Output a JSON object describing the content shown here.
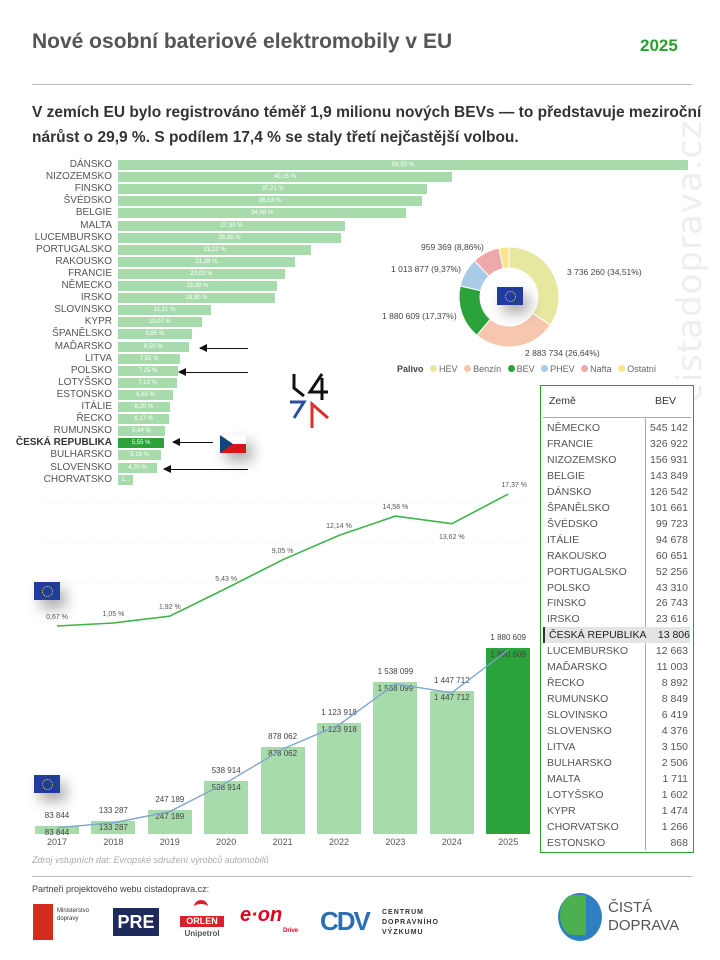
{
  "header": {
    "title": "Nové osobní bateriové elektromobily v EU",
    "year": "2025"
  },
  "subtitle": "V zemích EU bylo registrováno téměř 1,9 milionu nových BEVs — to představuje meziroční nárůst o 29,9 %. S podílem 17,4 % se staly třetí nejčastější volbou.",
  "colors": {
    "accent": "#2ca02c",
    "bar_light": "#a8dbab",
    "bar_highlight": "#2ca33a",
    "line_green": "#3cb44b",
    "line_blue": "#7fa6cc"
  },
  "chart_data": [
    {
      "type": "bar",
      "orientation": "horizontal",
      "highlight": "ČESKÁ REPUBLIKA",
      "categories": [
        "DÁNSKO",
        "NIZOZEMSKO",
        "FINSKO",
        "ŠVÉDSKO",
        "BELGIE",
        "MALTA",
        "LUCEMBURSKO",
        "PORTUGALSKO",
        "RAKOUSKO",
        "FRANCIE",
        "NĚMECKO",
        "IRSKO",
        "SLOVINSKO",
        "KYPR",
        "ŠPANĚLSKO",
        "MAĎARSKO",
        "LITVA",
        "POLSKO",
        "LOTYŠSKO",
        "ESTONSKO",
        "ITÁLIE",
        "ŘECKO",
        "RUMUNSKO",
        "ČESKÁ REPUBLIKA",
        "BULHARSKO",
        "SLOVENSKO",
        "CHORVATSKO"
      ],
      "values": [
        68.53,
        40.15,
        37.21,
        36.53,
        34.68,
        27.3,
        26.85,
        23.22,
        21.28,
        20.03,
        19.08,
        18.9,
        11.21,
        10.07,
        8.85,
        8.5,
        7.51,
        7.25,
        7.12,
        6.65,
        6.2,
        6.17,
        5.64,
        5.55,
        5.19,
        4.7,
        1.8
      ],
      "labels": [
        "68,53 %",
        "40,15 %",
        "37,21 %",
        "36,53 %",
        "34,68 %",
        "27,30 %",
        "26,85 %",
        "23,22 %",
        "21,28 %",
        "20,03 %",
        "19,08 %",
        "18,90 %",
        "11,21 %",
        "10,07 %",
        "8,85 %",
        "8,50 %",
        "7,51 %",
        "7,25 %",
        "7,12 %",
        "6,65 %",
        "6,20 %",
        "6,17 %",
        "5,64 %",
        "5,55 %",
        "5,19 %",
        "4,70 %",
        "1..."
      ],
      "arrows_to": [
        "MAĎARSKO",
        "POLSKO",
        "ČESKÁ REPUBLIKA",
        "SLOVENSKO"
      ],
      "xlim": [
        0,
        70
      ]
    },
    {
      "type": "pie",
      "donut": true,
      "legend_title": "Palivo",
      "legend_position": "bottom",
      "slices": [
        {
          "name": "HEV",
          "value": 3736260,
          "label": "3 736 260 (34,51%)",
          "color": "#e6e8a0"
        },
        {
          "name": "Benzín",
          "value": 2883734,
          "label": "2 883 734 (26,64%)",
          "color": "#f7c6ae"
        },
        {
          "name": "BEV",
          "value": 1880609,
          "label": "1 880 609 (17,37%)",
          "color": "#2ca33a"
        },
        {
          "name": "PHEV",
          "value": 1013877,
          "label": "1 013 877 (9,37%)",
          "color": "#a9cbe8"
        },
        {
          "name": "Nafta",
          "value": 959369,
          "label": "959 369 (8,86%)",
          "color": "#eda9a9"
        },
        {
          "name": "Ostatní",
          "value": 352000,
          "label": "",
          "color": "#f9e58e"
        }
      ]
    },
    {
      "type": "line",
      "x": [
        "2017",
        "2018",
        "2019",
        "2020",
        "2021",
        "2022",
        "2023",
        "2024",
        "2025"
      ],
      "values": [
        0.67,
        1.05,
        1.92,
        5.43,
        9.05,
        12.14,
        14.58,
        13.62,
        17.37
      ],
      "labels": [
        "0,67 %",
        "1,05 %",
        "1,92 %",
        "5,43 %",
        "9,05 %",
        "12,14 %",
        "14,58 %",
        "13,62 %",
        "17,37 %"
      ],
      "ylim": [
        0,
        18
      ]
    },
    {
      "type": "bar",
      "categories": [
        "2017",
        "2018",
        "2019",
        "2020",
        "2021",
        "2022",
        "2023",
        "2024",
        "2025"
      ],
      "values": [
        83844,
        133287,
        247189,
        538914,
        878062,
        1123918,
        1538099,
        1447712,
        1880609
      ],
      "labels": [
        "83 844",
        "133 287",
        "247 189",
        "538 914",
        "878 062",
        "1 123 918",
        "1 538 099",
        "1 447 712",
        "1 880 609"
      ],
      "highlight": "2025",
      "overlay_line": true,
      "ylim": [
        0,
        1900000
      ]
    }
  ],
  "table": {
    "headers": [
      "Země",
      "BEV"
    ],
    "highlight": "ČESKÁ REPUBLIKA",
    "rows": [
      [
        "NĚMECKO",
        "545 142"
      ],
      [
        "FRANCIE",
        "326 922"
      ],
      [
        "NIZOZEMSKO",
        "156 931"
      ],
      [
        "BELGIE",
        "143 849"
      ],
      [
        "DÁNSKO",
        "126 542"
      ],
      [
        "ŠPANĚLSKO",
        "101 661"
      ],
      [
        "ŠVÉDSKO",
        "99 723"
      ],
      [
        "ITÁLIE",
        "94 678"
      ],
      [
        "RAKOUSKO",
        "60 651"
      ],
      [
        "PORTUGALSKO",
        "52 256"
      ],
      [
        "POLSKO",
        "43 310"
      ],
      [
        "FINSKO",
        "26 743"
      ],
      [
        "IRSKO",
        "23 616"
      ],
      [
        "ČESKÁ REPUBLIKA",
        "13 806"
      ],
      [
        "LUCEMBURSKO",
        "12 663"
      ],
      [
        "MAĎARSKO",
        "11 003"
      ],
      [
        "ŘECKO",
        "8 892"
      ],
      [
        "RUMUNSKO",
        "8 849"
      ],
      [
        "SLOVINSKO",
        "6 419"
      ],
      [
        "SLOVENSKO",
        "4 376"
      ],
      [
        "LITVA",
        "3 150"
      ],
      [
        "BULHARSKO",
        "2 506"
      ],
      [
        "MALTA",
        "1 711"
      ],
      [
        "LOTYŠSKO",
        "1 602"
      ],
      [
        "KYPR",
        "1 474"
      ],
      [
        "CHORVATSKO",
        "1 266"
      ],
      [
        "ESTONSKO",
        "868"
      ]
    ]
  },
  "watermark": "cistadoprava.cz",
  "source": "Zdroj vstupních dat: Evropské sdružení výrobců automobilů",
  "footer": {
    "partners_label": "Partneři projektového webu cistadoprava.cz:",
    "logos": {
      "ministry": "Ministerstvo dopravy",
      "pre": "PRE",
      "orlen": "ORLEN",
      "orlen_sub": "Unipetrol",
      "eon": "e·on",
      "eon_sub": "Drive",
      "cdv": "CDV",
      "cdv_text": "CENTRUM DOPRAVNÍHO VÝZKUMU",
      "brand": "ČISTÁ DOPRAVA"
    }
  }
}
